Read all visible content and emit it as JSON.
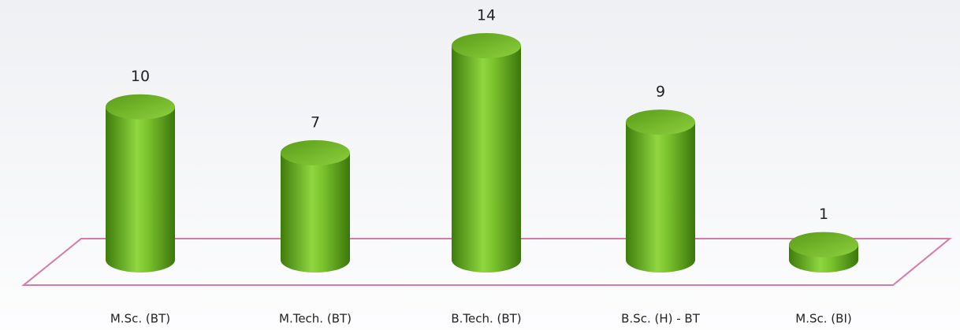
{
  "chart_data": {
    "type": "bar3d",
    "categories": [
      "M.Sc. (BT)",
      "M.Tech. (BT)",
      "B.Tech. (BT)",
      "B.Sc. (H) - BT",
      "M.Sc. (BI)"
    ],
    "values": [
      10,
      7,
      14,
      9,
      1
    ],
    "color": "#6ab023"
  }
}
